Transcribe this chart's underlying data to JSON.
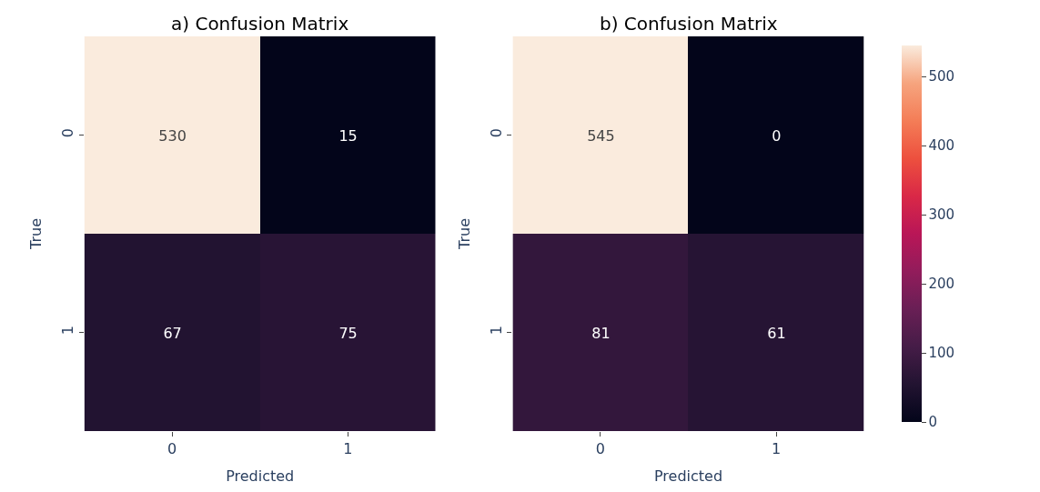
{
  "chart_data": [
    {
      "type": "heatmap",
      "title": "a) Confusion Matrix",
      "xlabel": "Predicted",
      "ylabel": "True",
      "categories": [
        "0",
        "1"
      ],
      "y_categories": [
        "0",
        "1"
      ],
      "data_labels": true,
      "cells": [
        [
          530,
          15
        ],
        [
          67,
          75
        ]
      ]
    },
    {
      "type": "heatmap",
      "title": "b) Confusion Matrix",
      "xlabel": "Predicted",
      "ylabel": "True",
      "categories": [
        "0",
        "1"
      ],
      "y_categories": [
        "0",
        "1"
      ],
      "data_labels": true,
      "cells": [
        [
          545,
          0
        ],
        [
          81,
          61
        ]
      ],
      "clim": [
        0,
        545
      ],
      "cticks": [
        0,
        100,
        200,
        300,
        400,
        500
      ]
    }
  ]
}
